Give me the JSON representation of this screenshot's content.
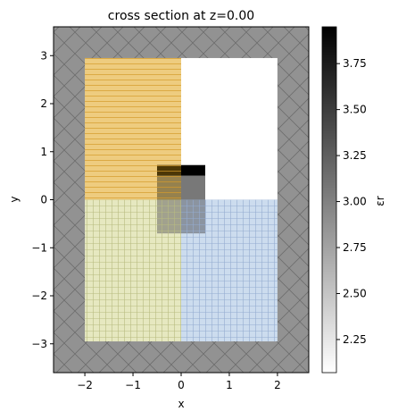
{
  "chart_data": {
    "type": "heatmap",
    "title": "cross section at z=0.00",
    "xlabel": "x",
    "ylabel": "y",
    "xlim": [
      -2.65,
      2.65
    ],
    "ylim": [
      -3.6,
      3.6
    ],
    "x_ticks": [
      -2,
      -1,
      0,
      1,
      2
    ],
    "y_ticks": [
      -3,
      -2,
      -1,
      0,
      1,
      2,
      3
    ],
    "x_tick_labels": [
      "−2",
      "−1",
      "0",
      "1",
      "2"
    ],
    "y_tick_labels": [
      "−3",
      "−2",
      "−1",
      "0",
      "1",
      "2",
      "3"
    ],
    "grid": false,
    "background_permittivity": 2.8,
    "regions": [
      {
        "name": "upper-left-block",
        "x": [
          -2.0,
          0.0
        ],
        "y": [
          0.0,
          2.95
        ],
        "permittivity": 2.1,
        "overlay_color": "#e8b84a",
        "hatch": "horizontal"
      },
      {
        "name": "lower-left-block",
        "x": [
          -2.0,
          0.0
        ],
        "y": [
          -2.95,
          0.0
        ],
        "permittivity": 2.1,
        "overlay_color": "#dde0a6",
        "hatch": "grid"
      },
      {
        "name": "lower-right-block",
        "x": [
          0.0,
          2.0
        ],
        "y": [
          -2.95,
          0.0
        ],
        "permittivity": 2.1,
        "overlay_color": "#b8cfe8",
        "hatch": "grid"
      },
      {
        "name": "upper-right-block",
        "x": [
          0.0,
          2.0
        ],
        "y": [
          0.0,
          2.95
        ],
        "permittivity": 2.07,
        "overlay_color": "#ffffff",
        "hatch": "none"
      },
      {
        "name": "core-top-right",
        "x": [
          0.0,
          0.5
        ],
        "y": [
          0.5,
          0.72
        ],
        "permittivity": 3.95,
        "overlay_color": "#000000",
        "hatch": "none"
      },
      {
        "name": "core-top-left",
        "x": [
          -0.5,
          0.0
        ],
        "y": [
          0.5,
          0.72
        ],
        "permittivity": 3.95,
        "overlay_color": "#6b4f0a",
        "hatch": "horizontal"
      },
      {
        "name": "core-mid-right",
        "x": [
          0.0,
          0.5
        ],
        "y": [
          0.0,
          0.5
        ],
        "permittivity": 3.1,
        "overlay_color": "#7a7a7a",
        "hatch": "none"
      },
      {
        "name": "core-mid-left",
        "x": [
          -0.5,
          0.0
        ],
        "y": [
          0.0,
          0.5
        ],
        "permittivity": 3.1,
        "overlay_color": "#a4883e",
        "hatch": "horizontal"
      },
      {
        "name": "core-bottom-left",
        "x": [
          -0.5,
          0.0
        ],
        "y": [
          -0.7,
          0.0
        ],
        "permittivity": 2.9,
        "overlay_color": "#a9a98f",
        "hatch": "grid"
      },
      {
        "name": "core-bottom-right",
        "x": [
          0.0,
          0.5
        ],
        "y": [
          -0.7,
          0.0
        ],
        "permittivity": 2.9,
        "overlay_color": "#8a97a8",
        "hatch": "grid"
      }
    ],
    "pml_regions": [
      {
        "name": "pml-left",
        "x": [
          -2.65,
          -2.0
        ],
        "y": [
          -3.6,
          3.6
        ]
      },
      {
        "name": "pml-right",
        "x": [
          2.0,
          2.65
        ],
        "y": [
          -3.6,
          3.6
        ]
      },
      {
        "name": "pml-top",
        "x": [
          -2.0,
          2.0
        ],
        "y": [
          2.95,
          3.6
        ]
      },
      {
        "name": "pml-bottom",
        "x": [
          -2.0,
          2.0
        ],
        "y": [
          -3.6,
          -2.95
        ]
      }
    ],
    "colorbar": {
      "label": "εr",
      "min": 2.07,
      "max": 3.95,
      "ticks": [
        2.25,
        2.5,
        2.75,
        3.0,
        3.25,
        3.5,
        3.75
      ],
      "tick_labels": [
        "2.25",
        "2.50",
        "2.75",
        "3.00",
        "3.25",
        "3.50",
        "3.75"
      ],
      "colormap": "gray_r"
    }
  }
}
